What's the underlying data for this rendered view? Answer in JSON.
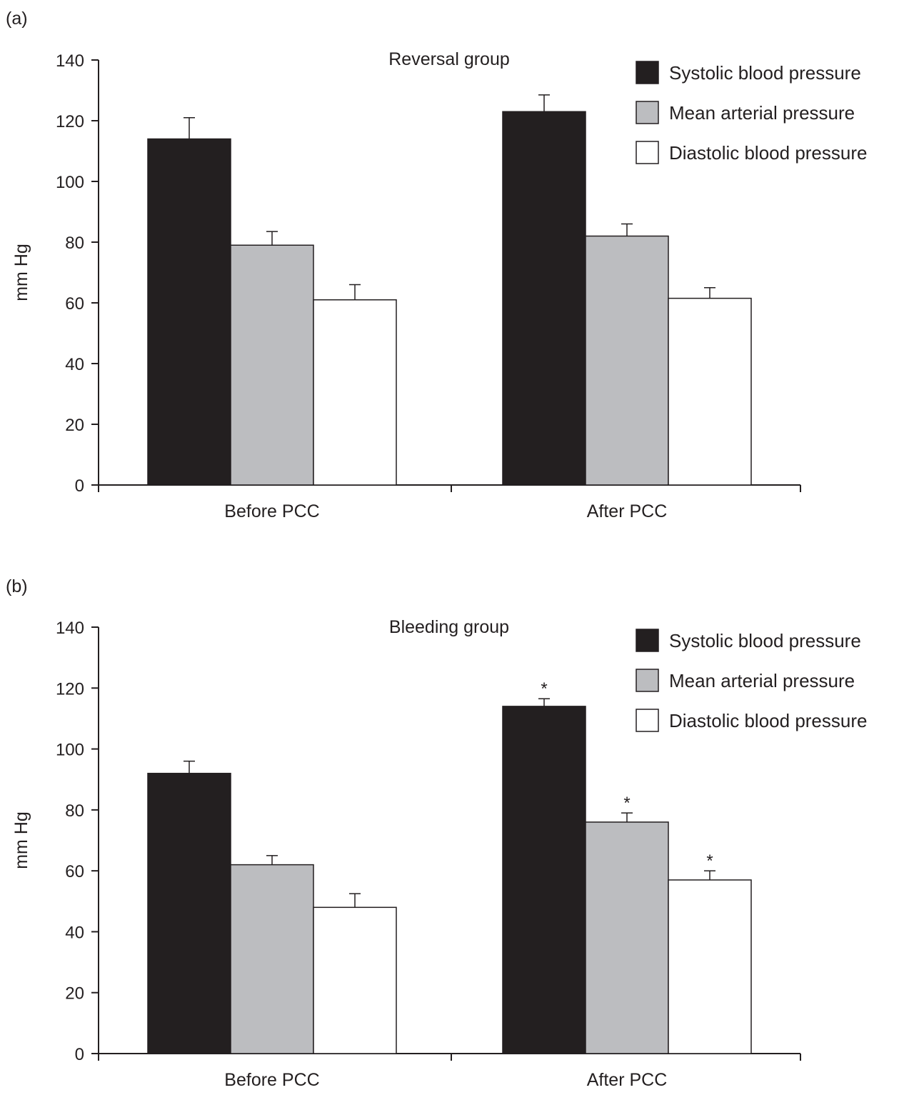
{
  "chart_data": [
    {
      "type": "bar",
      "panel_label": "(a)",
      "title": "Reversal group",
      "ylabel": "mm Hg",
      "xlabel": "",
      "ylim": [
        0,
        140
      ],
      "yticks": [
        0,
        20,
        40,
        60,
        80,
        100,
        120,
        140
      ],
      "categories": [
        "Before PCC",
        "After PCC"
      ],
      "series": [
        {
          "name": "Systolic blood pressure",
          "color": "#231f20",
          "values": [
            114,
            123
          ],
          "errors": [
            7,
            5.5
          ],
          "significant": [
            false,
            false
          ]
        },
        {
          "name": "Mean arterial pressure",
          "color": "#bcbdc0",
          "values": [
            79,
            82
          ],
          "errors": [
            4.5,
            4
          ],
          "significant": [
            false,
            false
          ]
        },
        {
          "name": "Diastolic blood pressure",
          "color": "#ffffff",
          "values": [
            61,
            61.5
          ],
          "errors": [
            5,
            3.5
          ],
          "significant": [
            false,
            false
          ]
        }
      ],
      "legend_position": "top-right",
      "grid": false
    },
    {
      "type": "bar",
      "panel_label": "(b)",
      "title": "Bleeding group",
      "ylabel": "mm Hg",
      "xlabel": "",
      "ylim": [
        0,
        140
      ],
      "yticks": [
        0,
        20,
        40,
        60,
        80,
        100,
        120,
        140
      ],
      "categories": [
        "Before PCC",
        "After PCC"
      ],
      "series": [
        {
          "name": "Systolic blood pressure",
          "color": "#231f20",
          "values": [
            92,
            114
          ],
          "errors": [
            4,
            2.5
          ],
          "significant": [
            false,
            true
          ]
        },
        {
          "name": "Mean arterial pressure",
          "color": "#bcbdc0",
          "values": [
            62,
            76
          ],
          "errors": [
            3,
            3
          ],
          "significant": [
            false,
            true
          ]
        },
        {
          "name": "Diastolic blood pressure",
          "color": "#ffffff",
          "values": [
            48,
            57
          ],
          "errors": [
            4.5,
            3
          ],
          "significant": [
            false,
            true
          ]
        }
      ],
      "significance_marker": "*",
      "legend_position": "top-right",
      "grid": false
    }
  ]
}
